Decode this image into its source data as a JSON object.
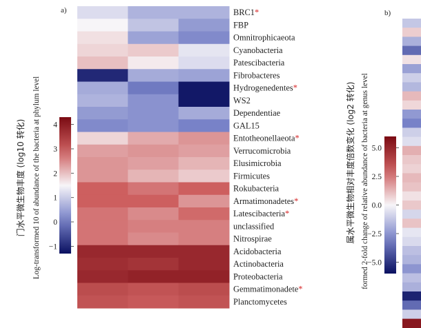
{
  "chart_data": [
    {
      "panel_label": "a)",
      "type": "heatmap",
      "ylabel_cn": "门水平微生物丰度 (log10 转化)",
      "ylabel_en": "Log-transformed 10 of abundance of the bacteria at phylum level",
      "colorbar": {
        "ticks": [
          "4",
          "3",
          "2",
          "1",
          "0",
          "−1"
        ],
        "tick_values": [
          4,
          3,
          2,
          1,
          0,
          -1
        ],
        "range": [
          -1.3,
          4.3
        ],
        "colors": {
          "low": "#0a1060",
          "mid": "#f7f5f8",
          "high": "#7a0a12"
        }
      },
      "rows": [
        {
          "label": "BRC1",
          "starred": true,
          "values": [
            1.2,
            0.7,
            0.7
          ]
        },
        {
          "label": "FBP",
          "starred": false,
          "values": [
            1.5,
            0.9,
            0.4
          ]
        },
        {
          "label": "Omnitrophicaeota",
          "starred": false,
          "values": [
            1.7,
            0.5,
            0.2
          ]
        },
        {
          "label": "Cyanobacteria",
          "starred": false,
          "values": [
            1.8,
            1.9,
            1.3
          ]
        },
        {
          "label": "Patescibacteria",
          "starred": false,
          "values": [
            2.0,
            1.6,
            1.2
          ]
        },
        {
          "label": "Fibrobacteres",
          "starred": false,
          "values": [
            -1.0,
            0.6,
            0.5
          ]
        },
        {
          "label": "Hydrogenedentes",
          "starred": true,
          "values": [
            0.6,
            0.0,
            -1.2
          ]
        },
        {
          "label": "WS2",
          "starred": false,
          "values": [
            0.7,
            0.3,
            -1.2
          ]
        },
        {
          "label": "Dependentiae",
          "starred": false,
          "values": [
            0.4,
            0.3,
            0.6
          ]
        },
        {
          "label": "GAL15",
          "starred": false,
          "values": [
            0.2,
            0.3,
            0.1
          ]
        },
        {
          "label": "Entotheonellaeota",
          "starred": true,
          "values": [
            1.8,
            2.2,
            2.4
          ]
        },
        {
          "label": "Verrucomicrobia",
          "starred": false,
          "values": [
            2.3,
            2.4,
            2.3
          ]
        },
        {
          "label": "Elusimicrobia",
          "starred": false,
          "values": [
            2.4,
            2.3,
            2.1
          ]
        },
        {
          "label": "Firmicutes",
          "starred": false,
          "values": [
            2.4,
            2.1,
            1.9
          ]
        },
        {
          "label": "Rokubacteria",
          "starred": false,
          "values": [
            2.9,
            2.7,
            2.9
          ]
        },
        {
          "label": "Armatimonadetes",
          "starred": true,
          "values": [
            2.9,
            2.9,
            2.4
          ]
        },
        {
          "label": "Latescibacteria",
          "starred": true,
          "values": [
            2.7,
            2.5,
            2.8
          ]
        },
        {
          "label": "unclassified",
          "starred": false,
          "values": [
            2.7,
            2.6,
            2.6
          ]
        },
        {
          "label": "Nitrospirae",
          "starred": false,
          "values": [
            2.7,
            2.5,
            2.6
          ]
        },
        {
          "label": "Acidobacteria",
          "starred": false,
          "values": [
            3.8,
            3.8,
            3.8
          ]
        },
        {
          "label": "Actinobacteria",
          "starred": false,
          "values": [
            3.7,
            3.6,
            3.8
          ]
        },
        {
          "label": "Proteobacteria",
          "starred": false,
          "values": [
            3.8,
            3.9,
            3.9
          ]
        },
        {
          "label": "Gemmatimonadete",
          "starred": true,
          "values": [
            3.2,
            3.1,
            3.2
          ]
        },
        {
          "label": "Planctomycetes",
          "starred": false,
          "values": [
            3.1,
            3.0,
            3.1
          ]
        }
      ]
    },
    {
      "panel_label": "b)",
      "type": "heatmap",
      "ylabel_cn": "属水平微生物相对丰度倍数变化 (log2 转化)",
      "ylabel_en": "formed 2-fold change of relative abundance of bacteria at genus level",
      "colorbar": {
        "ticks": [
          "5.0",
          "2.5",
          "0.0",
          "−2.5",
          "−5.0"
        ],
        "tick_values": [
          5.0,
          2.5,
          0.0,
          -2.5,
          -5.0
        ],
        "range": [
          -6.0,
          6.0
        ],
        "colors": {
          "low": "#0a1060",
          "mid": "#f7f5f8",
          "high": "#7a0a12"
        }
      },
      "column_values": [
        -1.2,
        0.8,
        -1.8,
        -3.6,
        0.4,
        -2.2,
        -1.0,
        -1.6,
        1.2,
        0.6,
        -2.4,
        -3.0,
        -1.0,
        -0.6,
        1.4,
        0.9,
        0.7,
        1.2,
        1.0,
        0.4,
        0.9,
        -0.8,
        1.0,
        -0.4,
        -0.7,
        -1.4,
        -1.7,
        -2.5,
        -1.4,
        -1.8,
        -5.5,
        -3.6,
        -1.0,
        5.5
      ]
    }
  ]
}
